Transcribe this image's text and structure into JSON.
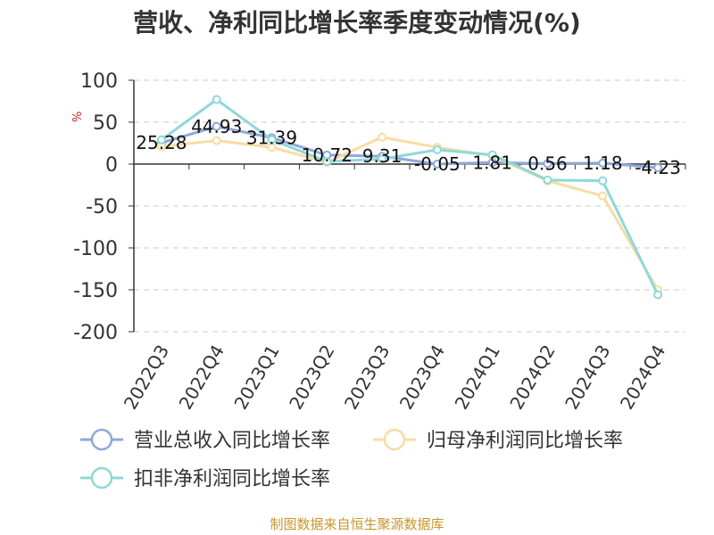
{
  "chart_data": {
    "type": "line",
    "title": "营收、净利同比增长率季度变动情况(%)",
    "ylabel": "%",
    "ylim": [
      -200,
      100
    ],
    "yticks": [
      100,
      50,
      0,
      -50,
      -100,
      -150,
      -200
    ],
    "grid": true,
    "legend_position": "bottom",
    "categories": [
      "2022Q3",
      "2022Q4",
      "2023Q1",
      "2023Q2",
      "2023Q3",
      "2023Q4",
      "2024Q1",
      "2024Q2",
      "2024Q3",
      "2024Q4"
    ],
    "series": [
      {
        "name": "营业总收入同比增长率",
        "color": "#8fa8d8",
        "values": [
          25.28,
          44.93,
          31.39,
          10.72,
          9.31,
          -0.05,
          1.81,
          0.56,
          1.18,
          -4.23
        ],
        "data_labels": [
          "25.28",
          "44.93",
          "31.39",
          "10.72",
          "9.31",
          "-0.05",
          "1.81",
          "0.56",
          "1.18",
          "-4.23"
        ]
      },
      {
        "name": "归母净利润同比增长率",
        "color": "#f8dca4",
        "values": [
          21,
          28,
          20,
          2,
          32,
          20,
          10,
          -20,
          -38,
          -150
        ]
      },
      {
        "name": "扣非净利润同比增长率",
        "color": "#8fd8d8",
        "values": [
          29,
          77,
          29,
          3,
          6,
          17,
          11,
          -19,
          -20,
          -156
        ]
      }
    ]
  },
  "footer": {
    "source": "制图数据来自恒生聚源数据库"
  }
}
